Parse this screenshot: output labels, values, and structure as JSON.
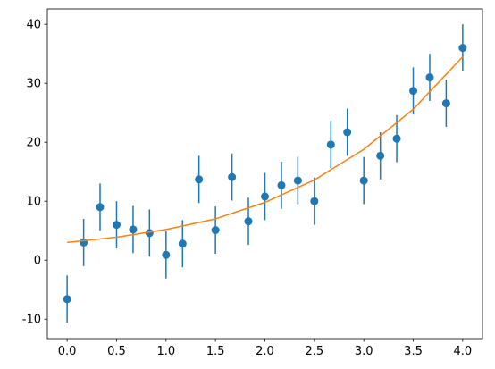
{
  "chart_data": {
    "type": "errorbar",
    "xlim": [
      -0.2,
      4.2
    ],
    "ylim": [
      -13.3,
      42.6
    ],
    "xticks": [
      {
        "value": 0,
        "label": "0.0"
      },
      {
        "value": 0.5,
        "label": "0.5"
      },
      {
        "value": 1,
        "label": "1.0"
      },
      {
        "value": 1.5,
        "label": "1.5"
      },
      {
        "value": 2,
        "label": "2.0"
      },
      {
        "value": 2.5,
        "label": "2.5"
      },
      {
        "value": 3,
        "label": "3.0"
      },
      {
        "value": 3.5,
        "label": "3.5"
      },
      {
        "value": 4,
        "label": "4.0"
      }
    ],
    "yticks": [
      -10,
      0,
      10,
      20,
      30,
      40
    ],
    "series": [
      {
        "type": "errorbar",
        "color": "#1f77b4",
        "x": [
          0,
          0.167,
          0.333,
          0.5,
          0.667,
          0.833,
          1.0,
          1.167,
          1.333,
          1.5,
          1.667,
          1.833,
          2.0,
          2.167,
          2.333,
          2.5,
          2.667,
          2.833,
          3.0,
          3.167,
          3.333,
          3.5,
          3.667,
          3.833,
          4.0
        ],
        "values": [
          -6.6,
          3.0,
          9.0,
          6.0,
          5.2,
          4.6,
          0.9,
          2.8,
          13.7,
          5.1,
          14.1,
          6.6,
          10.8,
          12.7,
          13.5,
          10.0,
          19.6,
          21.7,
          13.5,
          17.7,
          20.6,
          28.7,
          31.0,
          26.6,
          36.0
        ],
        "errors": [
          4,
          4,
          4,
          4,
          4,
          4,
          4,
          4,
          4,
          4,
          4,
          4,
          4,
          4,
          4,
          4,
          4,
          4,
          4,
          4,
          4,
          4,
          4,
          4,
          4
        ]
      },
      {
        "type": "line",
        "color": "#ff7f0e",
        "x": [
          0,
          0.5,
          1,
          1.5,
          2,
          2.5,
          3,
          3.5,
          4
        ],
        "values": [
          3.0,
          3.9,
          5.2,
          7.0,
          9.8,
          13.6,
          18.8,
          25.6,
          34.5
        ]
      }
    ]
  }
}
